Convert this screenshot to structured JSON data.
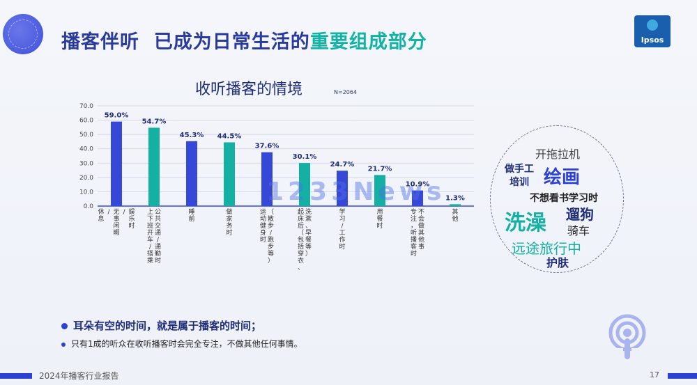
{
  "header": {
    "title_part1": "播客伴听",
    "title_part2": "已成为日常生活的",
    "title_highlight": "重要组成部分",
    "logo_text": "Ipsos"
  },
  "chart_data": {
    "type": "bar",
    "title": "收听播客的情境",
    "subtitle": "N=2064",
    "ylim": [
      0,
      70
    ],
    "yticks": [
      "0.0",
      "10.0",
      "20.0",
      "30.0",
      "40.0",
      "50.0",
      "60.0",
      "70.0"
    ],
    "grid": true,
    "categories": [
      "休息/无事闲暇/娱乐时",
      "上下班开车/公共交通/通勤时/搭乘",
      "睡前",
      "做家务时",
      "运动健身时(散步/跑步等)",
      "起床后(包括穿衣、洗漱、早餐等)",
      "学习/工作时",
      "用餐时",
      "专注,听播客时/不会做其他事",
      "其他"
    ],
    "category_lines": [
      [
        "休息",
        "/",
        "无事闲暇",
        "/",
        "娱乐时"
      ],
      [
        "上下班开车/搭乘",
        "公共交通/通勤时"
      ],
      [
        "睡前"
      ],
      [
        "做家务时"
      ],
      [
        "运动健身时",
        "（散步/跑步等）"
      ],
      [
        "起床后（包括穿衣、",
        "洗漱、早餐等）"
      ],
      [
        "学习/工作时"
      ],
      [
        "用餐时"
      ],
      [
        "专注，听播客时",
        "不会做其他事"
      ],
      [
        "其他"
      ]
    ],
    "values": [
      59.0,
      54.7,
      45.3,
      44.5,
      37.6,
      30.1,
      24.7,
      21.7,
      10.9,
      1.3
    ],
    "labels": [
      "59.0%",
      "54.7%",
      "45.3%",
      "44.5%",
      "37.6%",
      "30.1%",
      "24.7%",
      "21.7%",
      "10.9%",
      "1.3%"
    ],
    "colors": [
      "#3548d8",
      "#14b0a4",
      "#3548d8",
      "#14b0a4",
      "#3548d8",
      "#14b0a4",
      "#3548d8",
      "#14b0a4",
      "#3548d8",
      "#14b0a4"
    ]
  },
  "word_cloud": {
    "words": [
      "开拖拉机",
      "做手工",
      "绘画",
      "培训",
      "不想看书学习时",
      "洗澡",
      "遛狗",
      "骑车",
      "远途旅行中",
      "护肤"
    ]
  },
  "watermark": "1233News",
  "bullets": {
    "b1": "耳朵有空的时间，就是属于播客的时间；",
    "b2": "只有1成的听众在收听播客时会完全专注，不做其他任何事情。"
  },
  "footer": {
    "report": "2024年播客行业报告",
    "page": "17"
  }
}
